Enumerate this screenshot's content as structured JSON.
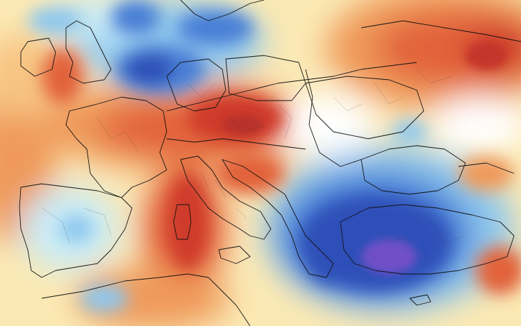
{
  "map": {
    "kind": "temperature anomaly (colour-filled)",
    "palette": {
      "deep_purple": "#6f4fc7",
      "deep_blue": "#2e4fb8",
      "blue": "#4a7fd6",
      "light_blue": "#8ec7ee",
      "pale_blue": "#c9ecf8",
      "white": "#ffffff",
      "pale_yellow": "#fbe9b4",
      "light_orange": "#f7c483",
      "orange": "#ef9a5a",
      "red_orange": "#e2623a",
      "red": "#cf3b2a"
    },
    "anomalies": [
      {
        "name": "cold-core-anatolia",
        "sign": "negative",
        "intensity": "strongest"
      },
      {
        "name": "cold-aegean-balkans",
        "sign": "negative",
        "intensity": "strong"
      },
      {
        "name": "cold-benelux-north-sea",
        "sign": "negative",
        "intensity": "strong"
      },
      {
        "name": "cold-iberia",
        "sign": "negative",
        "intensity": "weak"
      },
      {
        "name": "warm-central-europe-alps",
        "sign": "positive",
        "intensity": "strong"
      },
      {
        "name": "warm-tyrrhenian-sardinia",
        "sign": "positive",
        "intensity": "strong"
      },
      {
        "name": "warm-north-africa",
        "sign": "positive",
        "intensity": "moderate"
      },
      {
        "name": "warm-russia",
        "sign": "positive",
        "intensity": "strong"
      },
      {
        "name": "warm-atlantic-west",
        "sign": "positive",
        "intensity": "moderate"
      }
    ]
  }
}
